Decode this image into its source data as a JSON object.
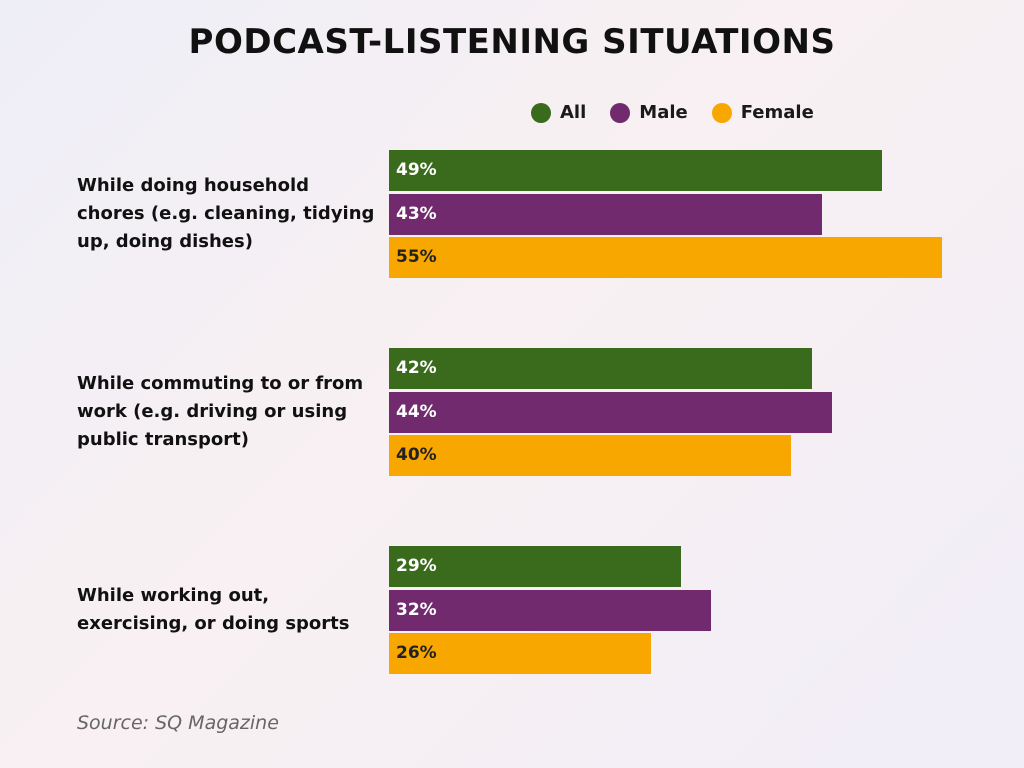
{
  "chart_data": {
    "type": "bar",
    "orientation": "horizontal",
    "title": "PODCAST-LISTENING SITUATIONS",
    "categories": [
      "While doing household chores (e.g. cleaning, tidying up, doing dishes)",
      "While commuting to or from work (e.g. driving or using public transport)",
      "While working out, exercising, or doing sports"
    ],
    "series": [
      {
        "name": "All",
        "color": "#3a6a1b",
        "values": [
          49,
          42,
          29
        ],
        "value_labels": [
          "49%",
          "42%",
          "29%"
        ]
      },
      {
        "name": "Male",
        "color": "#702a6d",
        "values": [
          43,
          44,
          32
        ],
        "value_labels": [
          "43%",
          "44%",
          "32%"
        ]
      },
      {
        "name": "Female",
        "color": "#f8a700",
        "values": [
          55,
          40,
          26
        ],
        "value_labels": [
          "55%",
          "40%",
          "26%"
        ]
      }
    ],
    "source": "Source: SQ Magazine"
  }
}
